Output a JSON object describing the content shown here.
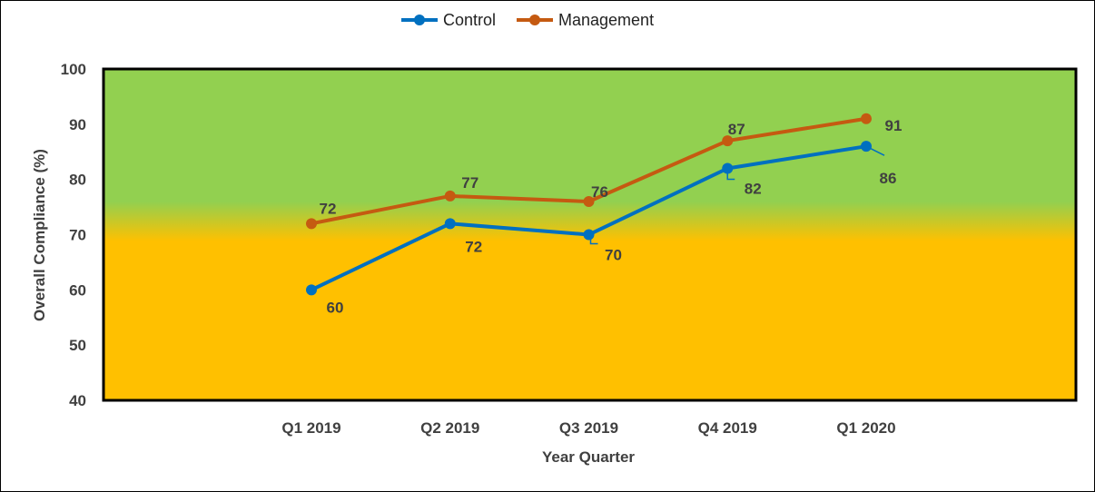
{
  "chart_data": {
    "type": "line",
    "title": "",
    "xlabel": "Year Quarter",
    "ylabel": "Overall Compliance (%)",
    "categories": [
      "Q1 2019",
      "Q2 2019",
      "Q3 2019",
      "Q4 2019",
      "Q1 2020"
    ],
    "ylim": [
      40,
      100
    ],
    "yticks": [
      "40",
      "50",
      "60",
      "70",
      "80",
      "90",
      "100"
    ],
    "legend_position": "top-center",
    "grid": false,
    "background_bands": [
      {
        "range": [
          40,
          70
        ],
        "color": "#FFC000"
      },
      {
        "range": [
          75,
          100
        ],
        "color": "#92D050"
      }
    ],
    "series": [
      {
        "name": "Control",
        "color": "#0070C0",
        "values": [
          60,
          72,
          70,
          82,
          86
        ],
        "labels": [
          "60",
          "72",
          "70",
          "82",
          "86"
        ]
      },
      {
        "name": "Management",
        "color": "#C55A11",
        "values": [
          72,
          77,
          76,
          87,
          91
        ],
        "labels": [
          "72",
          "77",
          "76",
          "87",
          "91"
        ]
      }
    ]
  }
}
